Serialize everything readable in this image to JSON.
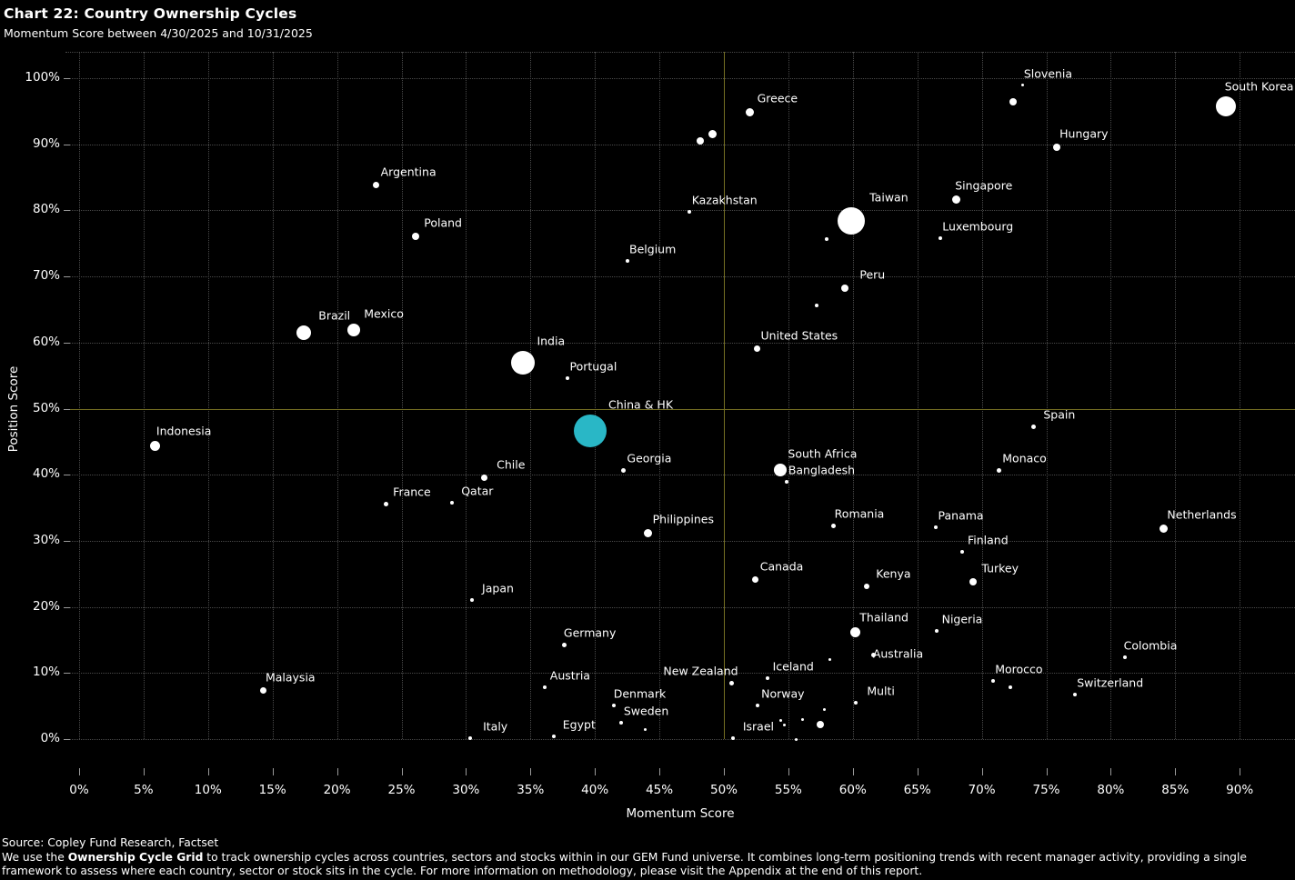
{
  "title": "Chart 22:  Country Ownership Cycles",
  "subtitle": "Momentum Score between 4/30/2025 and 10/31/2025",
  "footer": {
    "source": "Source:  Copley Fund Research, Factset",
    "body_prefix": "We use the ",
    "body_bold": "Ownership Cycle Grid",
    "body_rest": " to track ownership cycles across countries, sectors and stocks within in our GEM Fund universe. It combines long-term positioning trends with recent manager activity, providing a single framework to assess where each country, sector or stock sits in the cycle. For more information on methodology, please visit the Appendix at the end of this report."
  },
  "chart_data": {
    "type": "scatter",
    "xlabel": "Momentum Score",
    "ylabel": "Position Score",
    "xlim": [
      0,
      94
    ],
    "ylim": [
      -4,
      104
    ],
    "x_ticks": [
      0,
      5,
      10,
      15,
      20,
      25,
      30,
      35,
      40,
      45,
      50,
      55,
      60,
      65,
      70,
      75,
      80,
      85,
      90
    ],
    "y_ticks": [
      0,
      10,
      20,
      30,
      40,
      50,
      60,
      70,
      80,
      90,
      100
    ],
    "grid": true,
    "crosshair": {
      "x": 50,
      "y": 50
    },
    "colors": {
      "background": "#000000",
      "text": "#ffffff",
      "point": "#ffffff",
      "highlight_point": "#29b7c6",
      "crosshair": "#756f23",
      "grid": "#4a4a4a",
      "tick": "#9a9a9a"
    },
    "points": [
      {
        "label": "Slovenia",
        "x": 73.2,
        "y": 98.9,
        "r": 1.5
      },
      {
        "label": "South Korea",
        "x": 88.9,
        "y": 95.7,
        "r": 11
      },
      {
        "label": "Greece",
        "x": 52.0,
        "y": 94.9,
        "r": 4.5
      },
      {
        "label": "",
        "x": 72.4,
        "y": 96.4,
        "r": 4
      },
      {
        "label": "",
        "x": 49.1,
        "y": 91.6,
        "r": 4.5
      },
      {
        "label": "",
        "x": 48.2,
        "y": 90.5,
        "r": 4
      },
      {
        "label": "Hungary",
        "x": 75.8,
        "y": 89.5,
        "r": 4
      },
      {
        "label": "Argentina",
        "x": 23.0,
        "y": 83.9,
        "r": 3.5,
        "ldx": 36
      },
      {
        "label": "Singapore",
        "x": 68.0,
        "y": 81.6,
        "r": 4.5
      },
      {
        "label": "Kazakhstan",
        "x": 47.3,
        "y": 79.8,
        "r": 2,
        "ldx": 39
      },
      {
        "label": "Taiwan",
        "x": 59.9,
        "y": 78.4,
        "r": 15
      },
      {
        "label": "Poland",
        "x": 26.1,
        "y": 76.1,
        "r": 4
      },
      {
        "label": "Luxembourg",
        "x": 66.8,
        "y": 75.8,
        "r": 2,
        "ldx": 41
      },
      {
        "label": "",
        "x": 58.0,
        "y": 75.7,
        "r": 2
      },
      {
        "label": "Belgium",
        "x": 42.5,
        "y": 72.4,
        "r": 2
      },
      {
        "label": "Peru",
        "x": 59.4,
        "y": 68.2,
        "r": 4
      },
      {
        "label": "",
        "x": 57.2,
        "y": 65.6,
        "r": 2
      },
      {
        "label": "Mexico",
        "x": 21.3,
        "y": 61.9,
        "r": 7
      },
      {
        "label": "Brazil",
        "x": 17.4,
        "y": 61.5,
        "r": 8
      },
      {
        "label": "United States",
        "x": 52.6,
        "y": 59.1,
        "r": 3.5,
        "ldx": 46
      },
      {
        "label": "India",
        "x": 34.4,
        "y": 56.9,
        "r": 13,
        "ldx": 31
      },
      {
        "label": "Portugal",
        "x": 37.9,
        "y": 54.6,
        "r": 2
      },
      {
        "label": "China & HK",
        "x": 39.6,
        "y": 46.6,
        "r": 18,
        "ldx": 56,
        "highlight": true
      },
      {
        "label": "Spain",
        "x": 74.0,
        "y": 47.3,
        "r": 2.5
      },
      {
        "label": "Indonesia",
        "x": 5.9,
        "y": 44.4,
        "r": 5.5
      },
      {
        "label": "South Africa",
        "x": 54.4,
        "y": 40.7,
        "r": 7,
        "ldx": 46
      },
      {
        "label": "Georgia",
        "x": 42.2,
        "y": 40.6,
        "r": 2.5
      },
      {
        "label": "Monaco",
        "x": 71.3,
        "y": 40.6,
        "r": 2.5
      },
      {
        "label": "Chile",
        "x": 31.4,
        "y": 39.5,
        "r": 3.5
      },
      {
        "label": "Bangladesh",
        "x": 54.9,
        "y": 38.9,
        "r": 2,
        "ldx": 38
      },
      {
        "label": "Qatar",
        "x": 28.9,
        "y": 35.8,
        "r": 2
      },
      {
        "label": "France",
        "x": 23.8,
        "y": 35.5,
        "r": 2.5
      },
      {
        "label": "Romania",
        "x": 58.5,
        "y": 32.2,
        "r": 2.5
      },
      {
        "label": "Panama",
        "x": 66.4,
        "y": 32.0,
        "r": 2
      },
      {
        "label": "Netherlands",
        "x": 84.1,
        "y": 31.9,
        "r": 4.5,
        "ldx": 42
      },
      {
        "label": "Philippines",
        "x": 44.1,
        "y": 31.1,
        "r": 4.5,
        "ldx": 39
      },
      {
        "label": "Finland",
        "x": 68.5,
        "y": 28.3,
        "r": 2
      },
      {
        "label": "Canada",
        "x": 52.4,
        "y": 24.1,
        "r": 3.5
      },
      {
        "label": "Turkey",
        "x": 69.3,
        "y": 23.8,
        "r": 4
      },
      {
        "label": "Kenya",
        "x": 61.1,
        "y": 23.1,
        "r": 3
      },
      {
        "label": "Japan",
        "x": 30.5,
        "y": 21.0,
        "r": 2
      },
      {
        "label": "Nigeria",
        "x": 66.5,
        "y": 16.4,
        "r": 2
      },
      {
        "label": "Thailand",
        "x": 60.2,
        "y": 16.2,
        "r": 5.5
      },
      {
        "label": "Germany",
        "x": 37.6,
        "y": 14.2,
        "r": 2.5
      },
      {
        "label": "Australia",
        "x": 61.6,
        "y": 12.7,
        "r": 2.5,
        "ldx": 27,
        "ldy": -2
      },
      {
        "label": "",
        "x": 58.2,
        "y": 12.1,
        "r": 1.5
      },
      {
        "label": "Colombia",
        "x": 81.1,
        "y": 12.4,
        "r": 2
      },
      {
        "label": "Iceland",
        "x": 53.4,
        "y": 9.2,
        "r": 2
      },
      {
        "label": "Morocco",
        "x": 70.9,
        "y": 8.8,
        "r": 2
      },
      {
        "label": "New Zealand",
        "x": 50.6,
        "y": 8.5,
        "r": 2.5,
        "ldx": -34
      },
      {
        "label": "",
        "x": 72.2,
        "y": 7.8,
        "r": 2
      },
      {
        "label": "Austria",
        "x": 36.1,
        "y": 7.8,
        "r": 2
      },
      {
        "label": "Malaysia",
        "x": 14.3,
        "y": 7.3,
        "r": 3.5
      },
      {
        "label": "Switzerland",
        "x": 77.2,
        "y": 6.7,
        "r": 2,
        "ldx": 39
      },
      {
        "label": "Multi",
        "x": 60.2,
        "y": 5.5,
        "r": 2
      },
      {
        "label": "Denmark",
        "x": 41.5,
        "y": 5.1,
        "r": 2
      },
      {
        "label": "Norway",
        "x": 52.6,
        "y": 5.1,
        "r": 2
      },
      {
        "label": "",
        "x": 57.8,
        "y": 4.5,
        "r": 1.5
      },
      {
        "label": "",
        "x": 56.1,
        "y": 2.9,
        "r": 1.5
      },
      {
        "label": "",
        "x": 54.4,
        "y": 2.8,
        "r": 1.5
      },
      {
        "label": "Sweden",
        "x": 42.0,
        "y": 2.5,
        "r": 2
      },
      {
        "label": "",
        "x": 54.7,
        "y": 2.2,
        "r": 1.5
      },
      {
        "label": "",
        "x": 57.5,
        "y": 2.2,
        "r": 4
      },
      {
        "label": "",
        "x": 43.9,
        "y": 1.4,
        "r": 1.5
      },
      {
        "label": "Egypt",
        "x": 36.8,
        "y": 0.4,
        "r": 2
      },
      {
        "label": "Israel",
        "x": 50.7,
        "y": 0.1,
        "r": 2
      },
      {
        "label": "Italy",
        "x": 30.3,
        "y": 0.1,
        "r": 2
      },
      {
        "label": "",
        "x": 55.6,
        "y": 0.0,
        "r": 1.5
      }
    ]
  }
}
